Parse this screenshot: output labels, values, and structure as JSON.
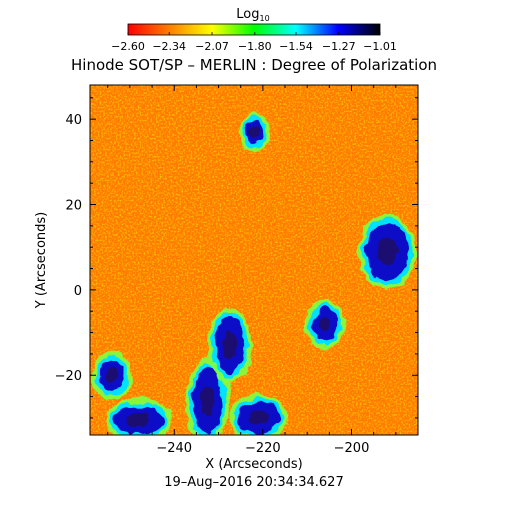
{
  "chart_data": {
    "type": "heatmap",
    "title": "Hinode SOT/SP – MERLIN : Degree of Polarization",
    "subtitle": "19–Aug–2016 20:34:34.627",
    "xlabel": "X (Arcseconds)",
    "ylabel": "Y (Arcseconds)",
    "xlim": [
      -259,
      -185
    ],
    "ylim": [
      -34,
      48
    ],
    "x_ticks": [
      -240,
      -220,
      -200
    ],
    "x_tick_labels": [
      "−240",
      "−220",
      "−200"
    ],
    "y_ticks": [
      -20,
      0,
      20,
      40
    ],
    "y_tick_labels": [
      "−20",
      "0",
      "20",
      "40"
    ],
    "colorbar": {
      "label_main": "Log",
      "label_sub": "10",
      "range": [
        -2.6,
        -1.01
      ],
      "tick_values": [
        -2.6,
        -2.34,
        -2.07,
        -1.8,
        -1.54,
        -1.27,
        -1.01
      ],
      "tick_labels": [
        "−2.60",
        "−2.34",
        "−2.07",
        "−1.80",
        "−1.54",
        "−1.27",
        "−1.01"
      ],
      "colors": [
        "#ff0000",
        "#ff8000",
        "#ffff00",
        "#00ff00",
        "#00ffff",
        "#0000ff",
        "#000000"
      ]
    },
    "high_regions": [
      {
        "x": [
          -236,
          -229
        ],
        "y": [
          -34,
          -18
        ],
        "level": "high"
      },
      {
        "x": [
          -231,
          -224
        ],
        "y": [
          -20,
          -6
        ],
        "level": "high"
      },
      {
        "x": [
          -257,
          -251
        ],
        "y": [
          -24,
          -16
        ],
        "level": "high"
      },
      {
        "x": [
          -226,
          -216
        ],
        "y": [
          -34,
          -26
        ],
        "level": "high"
      },
      {
        "x": [
          -197,
          -187
        ],
        "y": [
          2,
          16
        ],
        "level": "high"
      },
      {
        "x": [
          -224,
          -220
        ],
        "y": [
          34,
          40
        ],
        "level": "high"
      },
      {
        "x": [
          -209,
          -203
        ],
        "y": [
          -12,
          -4
        ],
        "level": "high"
      },
      {
        "x": [
          -254,
          -242
        ],
        "y": [
          -34,
          -27
        ],
        "level": "high"
      }
    ]
  }
}
